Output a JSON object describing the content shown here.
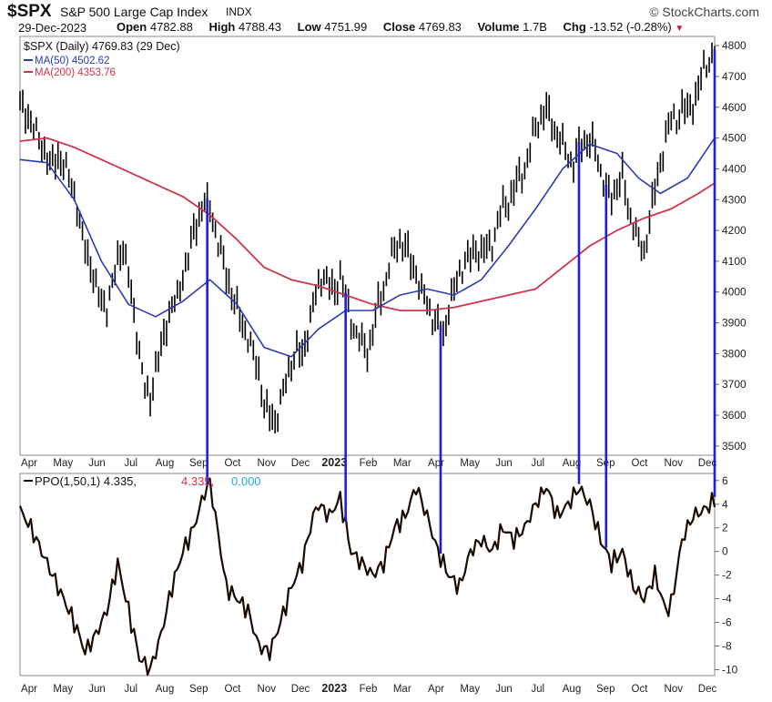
{
  "header": {
    "symbol": "$SPX",
    "name": "S&P 500 Large Cap Index",
    "exchange": "INDX",
    "brand": "© StockCharts.com",
    "date": "29-Dec-2023",
    "open_label": "Open",
    "open": "4782.88",
    "high_label": "High",
    "high": "4788.43",
    "low_label": "Low",
    "low": "4751.99",
    "close_label": "Close",
    "close": "4769.83",
    "volume_label": "Volume",
    "volume": "1.7B",
    "chg_label": "Chg",
    "chg": "-13.52 (-0.28%)"
  },
  "colors": {
    "price": "#000000",
    "ma50": "#2b3ab5",
    "ma200": "#d0334b",
    "ppo": "#1a0a00",
    "signal": "#d0334b",
    "hist": "#29a3e0",
    "vlines": "#1f1fd6"
  },
  "chart_data": [
    {
      "type": "line",
      "legend": {
        "price": "$SPX (Daily) 4769.83 (29 Dec)",
        "ma50": "MA(50) 4502.62",
        "ma200": "MA(200) 4353.76"
      },
      "yticks": [
        3500,
        3600,
        3700,
        3800,
        3900,
        4000,
        4100,
        4200,
        4300,
        4400,
        4500,
        4600,
        4700,
        4800
      ],
      "ylim": [
        3470,
        4830
      ],
      "month_labels": [
        "Apr",
        "May",
        "Jun",
        "Jul",
        "Aug",
        "Sep",
        "Oct",
        "Nov",
        "Dec",
        "2023",
        "Feb",
        "Mar",
        "Apr",
        "May",
        "Jun",
        "Jul",
        "Aug",
        "Sep",
        "Oct",
        "Nov",
        "Dec"
      ],
      "price_series": [
        [
          0,
          4620
        ],
        [
          4,
          4550
        ],
        [
          8,
          4470
        ],
        [
          11,
          4420
        ],
        [
          14,
          4440
        ],
        [
          17,
          4400
        ],
        [
          20,
          4310
        ],
        [
          23,
          4180
        ],
        [
          26,
          4090
        ],
        [
          29,
          3990
        ],
        [
          32,
          3940
        ],
        [
          34,
          4020
        ],
        [
          36,
          4110
        ],
        [
          38,
          4150
        ],
        [
          40,
          4060
        ],
        [
          42,
          3930
        ],
        [
          44,
          3800
        ],
        [
          46,
          3680
        ],
        [
          48,
          3650
        ],
        [
          50,
          3760
        ],
        [
          52,
          3820
        ],
        [
          54,
          3900
        ],
        [
          56,
          3960
        ],
        [
          58,
          3970
        ],
        [
          60,
          4050
        ],
        [
          62,
          4120
        ],
        [
          64,
          4200
        ],
        [
          66,
          4250
        ],
        [
          68,
          4300
        ],
        [
          70,
          4270
        ],
        [
          72,
          4190
        ],
        [
          74,
          4130
        ],
        [
          76,
          4060
        ],
        [
          78,
          4000
        ],
        [
          80,
          3950
        ],
        [
          82,
          3890
        ],
        [
          84,
          3850
        ],
        [
          86,
          3790
        ],
        [
          88,
          3740
        ],
        [
          90,
          3640
        ],
        [
          92,
          3600
        ],
        [
          94,
          3580
        ],
        [
          96,
          3640
        ],
        [
          98,
          3700
        ],
        [
          100,
          3770
        ],
        [
          102,
          3820
        ],
        [
          104,
          3790
        ],
        [
          106,
          3880
        ],
        [
          108,
          3960
        ],
        [
          110,
          4010
        ],
        [
          112,
          4060
        ],
        [
          114,
          4020
        ],
        [
          116,
          4000
        ],
        [
          118,
          4070
        ],
        [
          120,
          3980
        ],
        [
          122,
          3900
        ],
        [
          124,
          3860
        ],
        [
          126,
          3830
        ],
        [
          128,
          3810
        ],
        [
          130,
          3880
        ],
        [
          132,
          3960
        ],
        [
          134,
          4010
        ],
        [
          136,
          4080
        ],
        [
          138,
          4130
        ],
        [
          140,
          4170
        ],
        [
          142,
          4150
        ],
        [
          144,
          4100
        ],
        [
          146,
          4070
        ],
        [
          148,
          3990
        ],
        [
          150,
          3960
        ],
        [
          152,
          3920
        ],
        [
          154,
          3890
        ],
        [
          156,
          3860
        ],
        [
          158,
          3960
        ],
        [
          160,
          4000
        ],
        [
          162,
          4060
        ],
        [
          164,
          4100
        ],
        [
          166,
          4110
        ],
        [
          168,
          4150
        ],
        [
          170,
          4130
        ],
        [
          172,
          4140
        ],
        [
          174,
          4160
        ],
        [
          176,
          4210
        ],
        [
          178,
          4280
        ],
        [
          180,
          4300
        ],
        [
          182,
          4330
        ],
        [
          184,
          4380
        ],
        [
          186,
          4400
        ],
        [
          188,
          4450
        ],
        [
          190,
          4540
        ],
        [
          192,
          4570
        ],
        [
          194,
          4590
        ],
        [
          196,
          4560
        ],
        [
          198,
          4510
        ],
        [
          200,
          4470
        ],
        [
          202,
          4440
        ],
        [
          204,
          4410
        ],
        [
          206,
          4470
        ],
        [
          208,
          4500
        ],
        [
          210,
          4490
        ],
        [
          212,
          4460
        ],
        [
          214,
          4390
        ],
        [
          216,
          4330
        ],
        [
          218,
          4300
        ],
        [
          220,
          4360
        ],
        [
          222,
          4380
        ],
        [
          224,
          4270
        ],
        [
          226,
          4230
        ],
        [
          228,
          4150
        ],
        [
          230,
          4120
        ],
        [
          232,
          4250
        ],
        [
          234,
          4330
        ],
        [
          236,
          4420
        ],
        [
          238,
          4510
        ],
        [
          240,
          4550
        ],
        [
          242,
          4560
        ],
        [
          244,
          4600
        ],
        [
          246,
          4590
        ],
        [
          248,
          4620
        ],
        [
          250,
          4660
        ],
        [
          252,
          4720
        ],
        [
          254,
          4750
        ],
        [
          256,
          4770
        ]
      ],
      "ma50_series": [
        [
          0,
          4430
        ],
        [
          10,
          4420
        ],
        [
          20,
          4300
        ],
        [
          30,
          4100
        ],
        [
          40,
          3960
        ],
        [
          50,
          3920
        ],
        [
          60,
          3970
        ],
        [
          70,
          4040
        ],
        [
          80,
          3960
        ],
        [
          90,
          3820
        ],
        [
          100,
          3790
        ],
        [
          110,
          3880
        ],
        [
          120,
          3940
        ],
        [
          130,
          3940
        ],
        [
          140,
          3990
        ],
        [
          150,
          4010
        ],
        [
          160,
          3990
        ],
        [
          170,
          4040
        ],
        [
          180,
          4150
        ],
        [
          190,
          4270
        ],
        [
          200,
          4400
        ],
        [
          210,
          4480
        ],
        [
          220,
          4450
        ],
        [
          228,
          4370
        ],
        [
          236,
          4320
        ],
        [
          246,
          4370
        ],
        [
          256,
          4500
        ]
      ],
      "ma200_series": [
        [
          0,
          4490
        ],
        [
          10,
          4500
        ],
        [
          20,
          4470
        ],
        [
          30,
          4430
        ],
        [
          40,
          4390
        ],
        [
          50,
          4350
        ],
        [
          60,
          4310
        ],
        [
          70,
          4250
        ],
        [
          80,
          4170
        ],
        [
          90,
          4080
        ],
        [
          100,
          4040
        ],
        [
          110,
          4020
        ],
        [
          120,
          3990
        ],
        [
          130,
          3960
        ],
        [
          140,
          3940
        ],
        [
          150,
          3940
        ],
        [
          160,
          3950
        ],
        [
          170,
          3970
        ],
        [
          180,
          3990
        ],
        [
          190,
          4010
        ],
        [
          200,
          4080
        ],
        [
          210,
          4150
        ],
        [
          220,
          4200
        ],
        [
          230,
          4240
        ],
        [
          240,
          4270
        ],
        [
          250,
          4320
        ],
        [
          256,
          4354
        ]
      ]
    },
    {
      "type": "line",
      "legend": {
        "label": "PPO(1,50,1)",
        "ppo": "4.335",
        "signal": "4.335",
        "hist": "0.000"
      },
      "yticks": [
        -10,
        -8,
        -6,
        -4,
        -2,
        0,
        2,
        4,
        6
      ],
      "ylim": [
        -10.5,
        6.6
      ],
      "month_labels": [
        "Apr",
        "May",
        "Jun",
        "Jul",
        "Aug",
        "Sep",
        "Oct",
        "Nov",
        "Dec",
        "2023",
        "Feb",
        "Mar",
        "Apr",
        "May",
        "Jun",
        "Jul",
        "Aug",
        "Sep",
        "Oct",
        "Nov",
        "Dec"
      ],
      "ppo_series": [
        [
          0,
          3.5
        ],
        [
          4,
          2
        ],
        [
          8,
          0
        ],
        [
          12,
          -2
        ],
        [
          16,
          -4
        ],
        [
          20,
          -6
        ],
        [
          24,
          -8.5
        ],
        [
          28,
          -7
        ],
        [
          32,
          -5
        ],
        [
          36,
          -1
        ],
        [
          40,
          -5
        ],
        [
          44,
          -9
        ],
        [
          48,
          -10
        ],
        [
          52,
          -7
        ],
        [
          56,
          -3
        ],
        [
          60,
          0
        ],
        [
          64,
          2
        ],
        [
          68,
          5
        ],
        [
          70,
          5.8
        ],
        [
          72,
          3
        ],
        [
          76,
          -3
        ],
        [
          80,
          -4
        ],
        [
          84,
          -5
        ],
        [
          88,
          -8
        ],
        [
          92,
          -8.5
        ],
        [
          96,
          -6
        ],
        [
          100,
          -3
        ],
        [
          104,
          -1
        ],
        [
          108,
          3
        ],
        [
          110,
          4
        ],
        [
          114,
          3
        ],
        [
          118,
          4.5
        ],
        [
          122,
          0
        ],
        [
          126,
          -1
        ],
        [
          130,
          -2
        ],
        [
          134,
          -1
        ],
        [
          138,
          2
        ],
        [
          142,
          3
        ],
        [
          146,
          5.5
        ],
        [
          150,
          3
        ],
        [
          154,
          0
        ],
        [
          158,
          -2
        ],
        [
          162,
          -3
        ],
        [
          166,
          0
        ],
        [
          170,
          1
        ],
        [
          174,
          0
        ],
        [
          178,
          2
        ],
        [
          182,
          1
        ],
        [
          186,
          2
        ],
        [
          190,
          4
        ],
        [
          194,
          5.5
        ],
        [
          198,
          3
        ],
        [
          202,
          4
        ],
        [
          206,
          5.4
        ],
        [
          210,
          4
        ],
        [
          214,
          1
        ],
        [
          218,
          -1
        ],
        [
          222,
          0
        ],
        [
          226,
          -3
        ],
        [
          230,
          -4
        ],
        [
          234,
          -2
        ],
        [
          238,
          -5
        ],
        [
          240,
          -4.5
        ],
        [
          244,
          1
        ],
        [
          248,
          3
        ],
        [
          252,
          3.5
        ],
        [
          256,
          4.3
        ]
      ]
    }
  ],
  "vlines_x": [
    69,
    120,
    155,
    206,
    216,
    256
  ]
}
